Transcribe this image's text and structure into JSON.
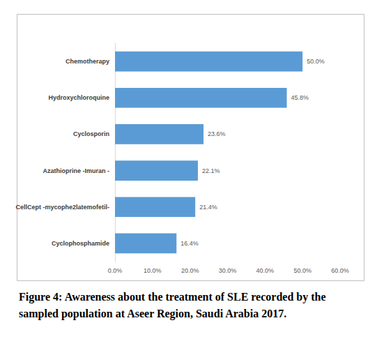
{
  "chart_data": {
    "type": "bar",
    "orientation": "horizontal",
    "title": "Figure 4: Awareness about the treatment of SLE recorded by the sampled population at Aseer Region, Saudi Arabia 2017.",
    "categories": [
      "Chemotherapy",
      "Hydroxychloroquine",
      "Cyclosporin",
      "Azathioprine -Imuran -",
      "CellCept -mycophe2latemofetil-",
      "Cyclophosphamide"
    ],
    "values": [
      50.0,
      45.8,
      23.6,
      22.1,
      21.4,
      16.4
    ],
    "value_labels": [
      "50.0%",
      "45.8%",
      "23.6%",
      "22.1%",
      "21.4%",
      "16.4%"
    ],
    "data_labels": true,
    "color": "#5b9bd5",
    "xlim": [
      0,
      60
    ],
    "xticks": [
      {
        "value": 0,
        "label": "0.0%"
      },
      {
        "value": 10,
        "label": "10.0%"
      },
      {
        "value": 20,
        "label": "20.0%"
      },
      {
        "value": 30,
        "label": "30.0%"
      },
      {
        "value": 40,
        "label": "40.0%"
      },
      {
        "value": 50,
        "label": "50.0%"
      },
      {
        "value": 60,
        "label": "60.0%"
      }
    ],
    "grid": false
  }
}
